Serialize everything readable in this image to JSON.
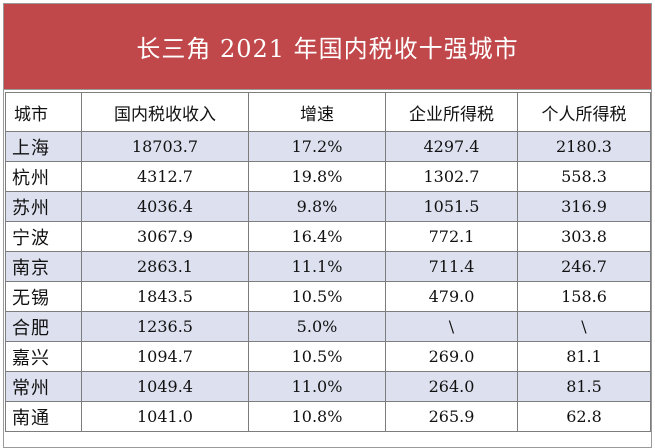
{
  "title": "长三角 2021 年国内税收十强城市",
  "headers": [
    "城市",
    "国内税收收入",
    "增速",
    "企业所得税",
    "个人所得税"
  ],
  "rows": [
    [
      "上海",
      "18703.7",
      "17.2%",
      "4297.4",
      "2180.3"
    ],
    [
      "杭州",
      "4312.7",
      "19.8%",
      "1302.7",
      "558.3"
    ],
    [
      "苏州",
      "4036.4",
      "9.8%",
      "1051.5",
      "316.9"
    ],
    [
      "宁波",
      "3067.9",
      "16.4%",
      "772.1",
      "303.8"
    ],
    [
      "南京",
      "2863.1",
      "11.1%",
      "711.4",
      "246.7"
    ],
    [
      "无锡",
      "1843.5",
      "10.5%",
      "479.0",
      "158.6"
    ],
    [
      "合肥",
      "1236.5",
      "5.0%",
      "\\",
      "\\"
    ],
    [
      "嘉兴",
      "1094.7",
      "10.5%",
      "269.0",
      "81.1"
    ],
    [
      "常州",
      "1049.4",
      "11.0%",
      "264.0",
      "81.5"
    ],
    [
      "南通",
      "1041.0",
      "10.8%",
      "265.9",
      "62.8"
    ]
  ],
  "colors": {
    "title_bg": "#c0474a",
    "title_text": "#ffffff",
    "stripe": "#dde0ef",
    "border": "#7d7d7d"
  }
}
